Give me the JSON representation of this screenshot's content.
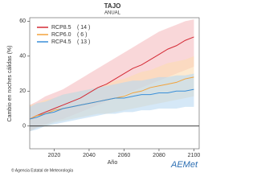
{
  "chart_data": {
    "type": "line",
    "title": "TAJO",
    "subtitle": "ANUAL",
    "y_label": "Cambio en noches cálidas (%)",
    "x_label": "Año",
    "x": [
      2006,
      2010,
      2015,
      2020,
      2025,
      2030,
      2035,
      2040,
      2045,
      2050,
      2055,
      2060,
      2065,
      2070,
      2075,
      2080,
      2085,
      2090,
      2095,
      2100
    ],
    "xlim": [
      2006,
      2103
    ],
    "xticks": [
      2020,
      2040,
      2060,
      2080,
      2100
    ],
    "ylim": [
      -13,
      62
    ],
    "yticks": [
      0,
      20,
      40,
      60
    ],
    "series": [
      {
        "name": "RCP8.5",
        "count_label": "( 14 )",
        "color": "#d42a35",
        "band_color": "#f5bcc0",
        "values": [
          4,
          6,
          8,
          10,
          12,
          14,
          16,
          19,
          22,
          24,
          27,
          30,
          33,
          35,
          38,
          41,
          44,
          46,
          49,
          51
        ],
        "lower": [
          -3,
          -1,
          1,
          3,
          4,
          6,
          8,
          10,
          12,
          14,
          16,
          18,
          20,
          22,
          24,
          26,
          28,
          30,
          32,
          34
        ],
        "upper": [
          12,
          14,
          17,
          19,
          21,
          24,
          27,
          30,
          33,
          36,
          39,
          42,
          45,
          48,
          51,
          54,
          56,
          58,
          60,
          61
        ]
      },
      {
        "name": "RCP6.0",
        "count_label": "(  6 )",
        "color": "#f2a33c",
        "band_color": "#fbdcb0",
        "values": [
          4,
          6,
          7,
          9,
          10,
          11,
          12,
          13,
          14,
          15,
          16,
          17,
          19,
          20,
          22,
          23,
          24,
          25,
          27,
          28
        ],
        "lower": [
          -3,
          -1,
          0,
          2,
          3,
          4,
          5,
          6,
          7,
          7,
          8,
          9,
          10,
          11,
          12,
          13,
          14,
          15,
          16,
          17
        ],
        "upper": [
          12,
          13,
          15,
          16,
          18,
          19,
          20,
          21,
          22,
          24,
          26,
          27,
          29,
          31,
          32,
          34,
          36,
          37,
          38,
          40
        ]
      },
      {
        "name": "RCP4.5",
        "count_label": "( 13 )",
        "color": "#3a8fd8",
        "band_color": "#b9d9f1",
        "values": [
          4,
          5,
          7,
          8,
          10,
          11,
          12,
          13,
          14,
          15,
          16,
          16,
          17,
          18,
          18,
          19,
          19,
          20,
          20,
          21
        ],
        "lower": [
          -3,
          -2,
          0,
          1,
          2,
          3,
          4,
          5,
          6,
          7,
          7,
          8,
          8,
          9,
          9,
          10,
          10,
          10,
          11,
          11
        ],
        "upper": [
          11,
          13,
          14,
          16,
          18,
          19,
          20,
          21,
          22,
          23,
          24,
          25,
          26,
          26,
          27,
          28,
          28,
          29,
          29,
          30
        ]
      }
    ],
    "footer": "© Agencia Estatal de Meteorología",
    "logo": "AEMet"
  }
}
